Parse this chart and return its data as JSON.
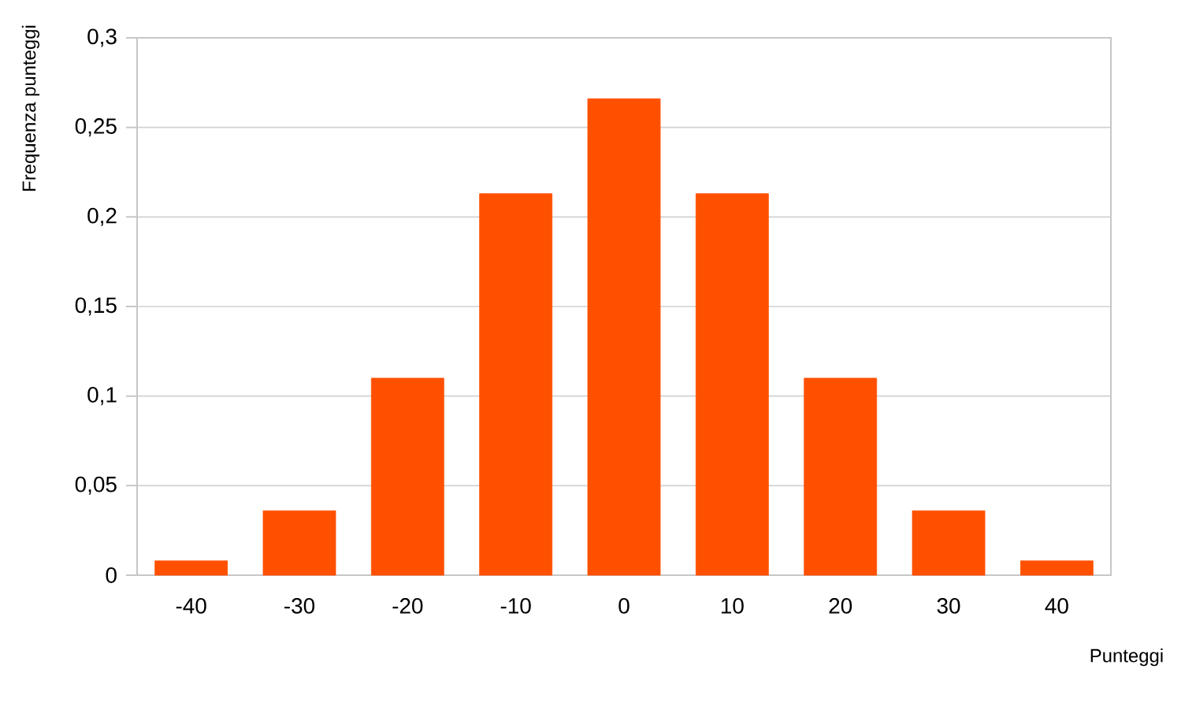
{
  "chart_data": {
    "type": "bar",
    "xlabel": "Punteggi",
    "ylabel": "Frequenza punteggi",
    "categories": [
      "-40",
      "-30",
      "-20",
      "-10",
      "0",
      "10",
      "20",
      "30",
      "40"
    ],
    "values": [
      0.008,
      0.036,
      0.11,
      0.213,
      0.266,
      0.213,
      0.11,
      0.036,
      0.008
    ],
    "color": "#ff5000",
    "ylim": [
      0,
      0.3
    ],
    "yticks": [
      0,
      {
        "value": 0.05,
        "label": "0,05"
      },
      {
        "value": 0.1,
        "label": "0,1"
      },
      {
        "value": 0.15,
        "label": "0,15"
      },
      {
        "value": 0.2,
        "label": "0,2"
      },
      {
        "value": 0.25,
        "label": "0,25"
      },
      {
        "value": 0.3,
        "label": "0,3"
      }
    ],
    "grid": "y"
  }
}
